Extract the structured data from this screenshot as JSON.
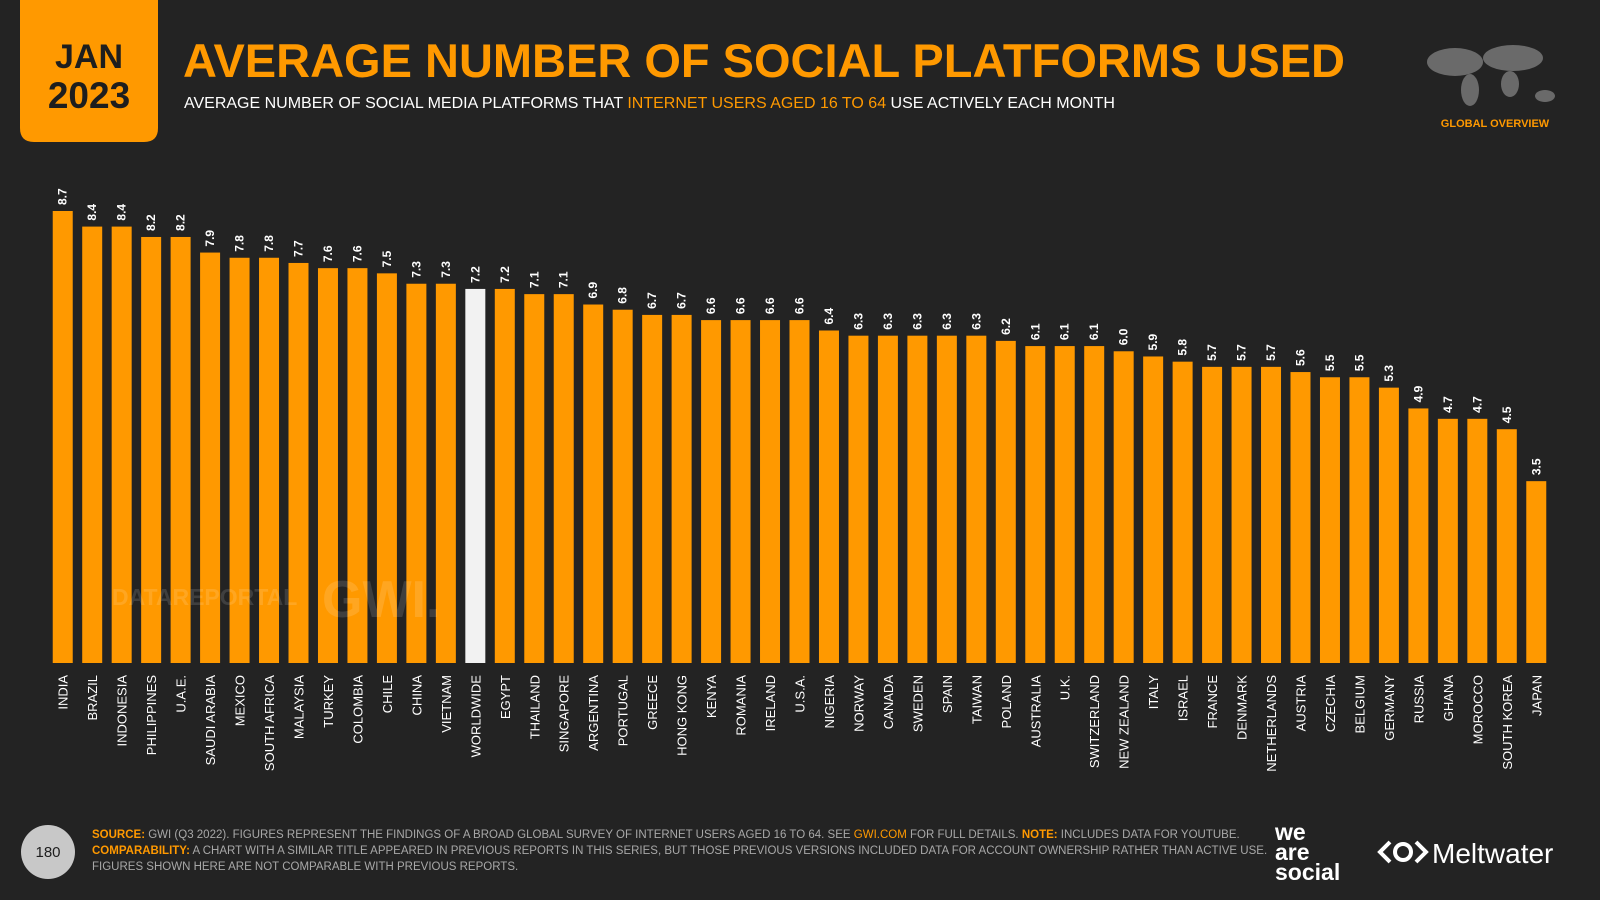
{
  "header": {
    "month": "JAN",
    "year": "2023",
    "title": "AVERAGE NUMBER OF SOCIAL PLATFORMS USED",
    "subtitle_parts": [
      "AVERAGE NUMBER OF SOCIAL MEDIA PLATFORMS THAT ",
      "INTERNET USERS AGED 16 TO 64",
      " USE ACTIVELY EACH MONTH"
    ],
    "section": "GLOBAL OVERVIEW"
  },
  "chart_data": {
    "type": "bar",
    "categories": [
      "INDIA",
      "BRAZIL",
      "INDONESIA",
      "PHILIPPINES",
      "U.A.E.",
      "SAUDI ARABIA",
      "MEXICO",
      "SOUTH AFRICA",
      "MALAYSIA",
      "TURKEY",
      "COLOMBIA",
      "CHILE",
      "CHINA",
      "VIETNAM",
      "WORLDWIDE",
      "EGYPT",
      "THAILAND",
      "SINGAPORE",
      "ARGENTINA",
      "PORTUGAL",
      "GREECE",
      "HONG KONG",
      "KENYA",
      "ROMANIA",
      "IRELAND",
      "U.S.A.",
      "NIGERIA",
      "NORWAY",
      "CANADA",
      "SWEDEN",
      "SPAIN",
      "TAIWAN",
      "POLAND",
      "AUSTRALIA",
      "U.K.",
      "SWITZERLAND",
      "NEW ZEALAND",
      "ITALY",
      "ISRAEL",
      "FRANCE",
      "DENMARK",
      "NETHERLANDS",
      "AUSTRIA",
      "CZECHIA",
      "BELGIUM",
      "GERMANY",
      "RUSSIA",
      "GHANA",
      "MOROCCO",
      "SOUTH KOREA",
      "JAPAN"
    ],
    "values": [
      8.7,
      8.4,
      8.4,
      8.2,
      8.2,
      7.9,
      7.8,
      7.8,
      7.7,
      7.6,
      7.6,
      7.5,
      7.3,
      7.3,
      7.2,
      7.2,
      7.1,
      7.1,
      6.9,
      6.8,
      6.7,
      6.7,
      6.6,
      6.6,
      6.6,
      6.6,
      6.4,
      6.3,
      6.3,
      6.3,
      6.3,
      6.3,
      6.2,
      6.1,
      6.1,
      6.1,
      6.0,
      5.9,
      5.8,
      5.7,
      5.7,
      5.7,
      5.6,
      5.5,
      5.5,
      5.3,
      4.9,
      4.7,
      4.7,
      4.5,
      3.5
    ],
    "value_labels": [
      "8.7",
      "8.4",
      "8.4",
      "8.2",
      "8.2",
      "7.9",
      "7.8",
      "7.8",
      "7.7",
      "7.6",
      "7.6",
      "7.5",
      "7.3",
      "7.3",
      "7.2",
      "7.2",
      "7.1",
      "7.1",
      "6.9",
      "6.8",
      "6.7",
      "6.7",
      "6.6",
      "6.6",
      "6.6",
      "6.6",
      "6.4",
      "6.3",
      "6.3",
      "6.3",
      "6.3",
      "6.3",
      "6.2",
      "6.1",
      "6.1",
      "6.1",
      "6.0",
      "5.9",
      "5.8",
      "5.7",
      "5.7",
      "5.7",
      "5.6",
      "5.5",
      "5.5",
      "5.3",
      "4.9",
      "4.7",
      "4.7",
      "4.5",
      "3.5"
    ],
    "colors": [
      "#ff9900",
      "#ff9900",
      "#ff9900",
      "#ff9900",
      "#ff9900",
      "#ff9900",
      "#ff9900",
      "#ff9900",
      "#ff9900",
      "#ff9900",
      "#ff9900",
      "#ff9900",
      "#ff9900",
      "#ff9900",
      "#f2f2f2",
      "#ff9900",
      "#ff9900",
      "#ff9900",
      "#ff9900",
      "#ff9900",
      "#ff9900",
      "#ff9900",
      "#ff9900",
      "#ff9900",
      "#ff9900",
      "#ff9900",
      "#ff9900",
      "#ff9900",
      "#ff9900",
      "#ff9900",
      "#ff9900",
      "#ff9900",
      "#ff9900",
      "#ff9900",
      "#ff9900",
      "#ff9900",
      "#ff9900",
      "#ff9900",
      "#ff9900",
      "#ff9900",
      "#ff9900",
      "#ff9900",
      "#ff9900",
      "#ff9900",
      "#ff9900",
      "#ff9900",
      "#ff9900",
      "#ff9900",
      "#ff9900",
      "#ff9900",
      "#ff9900"
    ]
  },
  "watermarks": [
    "DATAREPORTAL",
    "GWI."
  ],
  "footer": {
    "page": "180",
    "source_label": "SOURCE:",
    "source_text": " GWI (Q3 2022). FIGURES REPRESENT THE FINDINGS OF A BROAD GLOBAL SURVEY OF INTERNET USERS AGED 16 TO 64. SEE ",
    "source_link": "GWI.COM",
    "source_end": " FOR FULL DETAILS. ",
    "note_label": "NOTE:",
    "note_text": " INCLUDES DATA FOR YOUTUBE.",
    "comparability_label": "COMPARABILITY:",
    "comparability_text": " A CHART WITH A SIMILAR TITLE APPEARED IN PREVIOUS REPORTS IN THIS SERIES, BUT THOSE PREVIOUS VERSIONS INCLUDED DATA FOR ACCOUNT OWNERSHIP RATHER THAN ACTIVE USE.",
    "comparability_line2": "FIGURES SHOWN HERE ARE NOT COMPARABLE WITH PREVIOUS REPORTS.",
    "logo_words": [
      "we",
      "are",
      "social"
    ],
    "partner": "Meltwater"
  }
}
